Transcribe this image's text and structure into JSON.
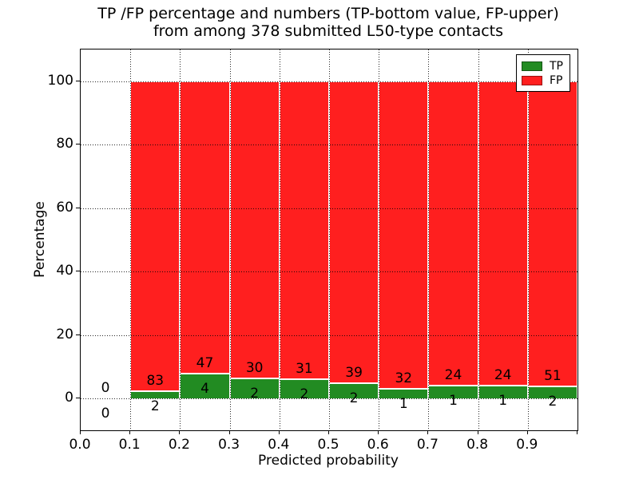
{
  "title": {
    "line1": "TP /FP percentage and numbers (TP-bottom value, FP-upper)",
    "line2": "from among 378 submitted L50-type contacts"
  },
  "axes": {
    "xlabel": "Predicted probability",
    "ylabel": "Percentage",
    "x_tick_labels": [
      "0.0",
      "0.1",
      "0.2",
      "0.3",
      "0.4",
      "0.5",
      "0.6",
      "0.7",
      "0.8",
      "0.9"
    ],
    "y_tick_labels": [
      "0",
      "20",
      "40",
      "60",
      "80",
      "100"
    ],
    "y_tick_values": [
      0,
      20,
      40,
      60,
      80,
      100
    ]
  },
  "legend": {
    "items": [
      {
        "label": "TP",
        "color": "#228b22"
      },
      {
        "label": "FP",
        "color": "#ff1f1f"
      }
    ]
  },
  "colors": {
    "tp": "#228b22",
    "fp": "#ff1f1f",
    "grid": "#000000",
    "axes": "#000000",
    "background": "#ffffff"
  },
  "chart_data": {
    "type": "bar",
    "stacked": true,
    "title": "TP /FP percentage and numbers (TP-bottom value, FP-upper) from among 378 submitted L50-type contacts",
    "xlabel": "Predicted probability",
    "ylabel": "Percentage",
    "xlim": [
      0.0,
      1.0
    ],
    "ylim": [
      -10,
      110
    ],
    "grid": true,
    "legend_position": "upper right",
    "total_contacts": 378,
    "series": [
      {
        "name": "TP",
        "color": "#228b22"
      },
      {
        "name": "FP",
        "color": "#ff1f1f"
      }
    ],
    "bins": [
      {
        "range": [
          0.0,
          0.1
        ],
        "tp": 0,
        "fp": 0,
        "tp_pct": 0.0,
        "fp_pct": 0.0,
        "draw_bar": false
      },
      {
        "range": [
          0.1,
          0.2
        ],
        "tp": 2,
        "fp": 83,
        "tp_pct": 2.35,
        "fp_pct": 97.65,
        "draw_bar": true
      },
      {
        "range": [
          0.2,
          0.3
        ],
        "tp": 4,
        "fp": 47,
        "tp_pct": 7.84,
        "fp_pct": 92.16,
        "draw_bar": true
      },
      {
        "range": [
          0.3,
          0.4
        ],
        "tp": 2,
        "fp": 30,
        "tp_pct": 6.25,
        "fp_pct": 93.75,
        "draw_bar": true
      },
      {
        "range": [
          0.4,
          0.5
        ],
        "tp": 2,
        "fp": 31,
        "tp_pct": 6.06,
        "fp_pct": 93.94,
        "draw_bar": true
      },
      {
        "range": [
          0.5,
          0.6
        ],
        "tp": 2,
        "fp": 39,
        "tp_pct": 4.88,
        "fp_pct": 95.12,
        "draw_bar": true
      },
      {
        "range": [
          0.6,
          0.7
        ],
        "tp": 1,
        "fp": 32,
        "tp_pct": 3.03,
        "fp_pct": 96.97,
        "draw_bar": true
      },
      {
        "range": [
          0.7,
          0.8
        ],
        "tp": 1,
        "fp": 24,
        "tp_pct": 4.0,
        "fp_pct": 96.0,
        "draw_bar": true
      },
      {
        "range": [
          0.8,
          0.9
        ],
        "tp": 1,
        "fp": 24,
        "tp_pct": 4.0,
        "fp_pct": 96.0,
        "draw_bar": true
      },
      {
        "range": [
          0.9,
          1.0
        ],
        "tp": 2,
        "fp": 51,
        "tp_pct": 3.77,
        "fp_pct": 96.23,
        "draw_bar": true
      }
    ]
  }
}
